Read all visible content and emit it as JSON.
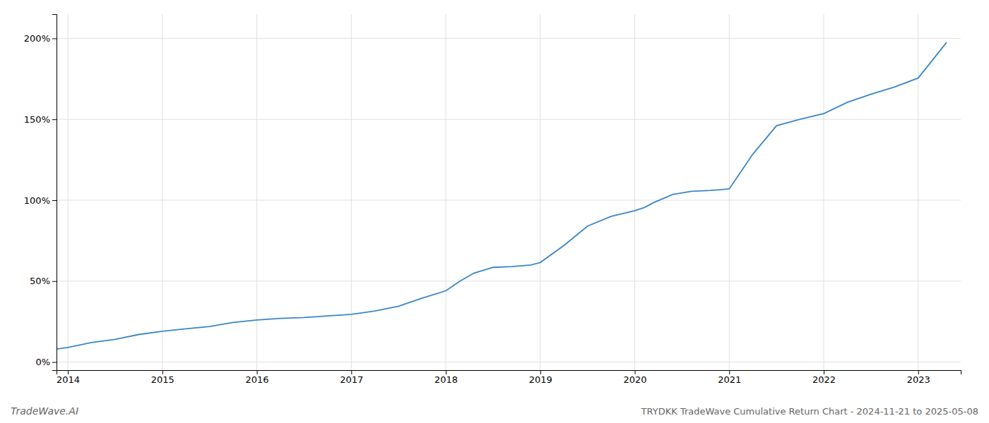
{
  "chart_data": {
    "type": "line",
    "title": "TRYDKK TradeWave Cumulative Return Chart - 2024-11-21 to 2025-05-08",
    "annotations": [
      "TradeWave.AI"
    ],
    "color": "#3a86c8",
    "grid": true,
    "xlim": [
      2013.88,
      2023.45
    ],
    "ylim": [
      -0.05,
      2.15
    ],
    "xticks": [
      2014,
      2015,
      2016,
      2017,
      2018,
      2019,
      2020,
      2021,
      2022,
      2023
    ],
    "yticks": [
      {
        "value": 0,
        "label": "0%"
      },
      {
        "value": 0.5,
        "label": "50%"
      },
      {
        "value": 1.0,
        "label": "100%"
      },
      {
        "value": 1.5,
        "label": "150%"
      },
      {
        "value": 2.0,
        "label": "200%"
      }
    ],
    "x": [
      2013.88,
      2014.0,
      2014.25,
      2014.5,
      2014.75,
      2015.0,
      2015.25,
      2015.5,
      2015.75,
      2016.0,
      2016.25,
      2016.5,
      2016.75,
      2017.0,
      2017.25,
      2017.5,
      2017.75,
      2018.0,
      2018.15,
      2018.3,
      2018.5,
      2018.7,
      2018.9,
      2019.0,
      2019.25,
      2019.5,
      2019.75,
      2020.0,
      2020.1,
      2020.2,
      2020.4,
      2020.6,
      2020.8,
      2021.0,
      2021.25,
      2021.5,
      2021.75,
      2022.0,
      2022.25,
      2022.5,
      2022.75,
      2023.0,
      2023.3
    ],
    "values": [
      0.08,
      0.09,
      0.12,
      0.14,
      0.17,
      0.19,
      0.205,
      0.22,
      0.245,
      0.26,
      0.27,
      0.275,
      0.285,
      0.295,
      0.315,
      0.345,
      0.395,
      0.44,
      0.5,
      0.55,
      0.585,
      0.59,
      0.6,
      0.615,
      0.72,
      0.84,
      0.9,
      0.935,
      0.955,
      0.985,
      1.035,
      1.055,
      1.06,
      1.07,
      1.285,
      1.46,
      1.5,
      1.535,
      1.605,
      1.655,
      1.7,
      1.755,
      1.975
    ]
  }
}
